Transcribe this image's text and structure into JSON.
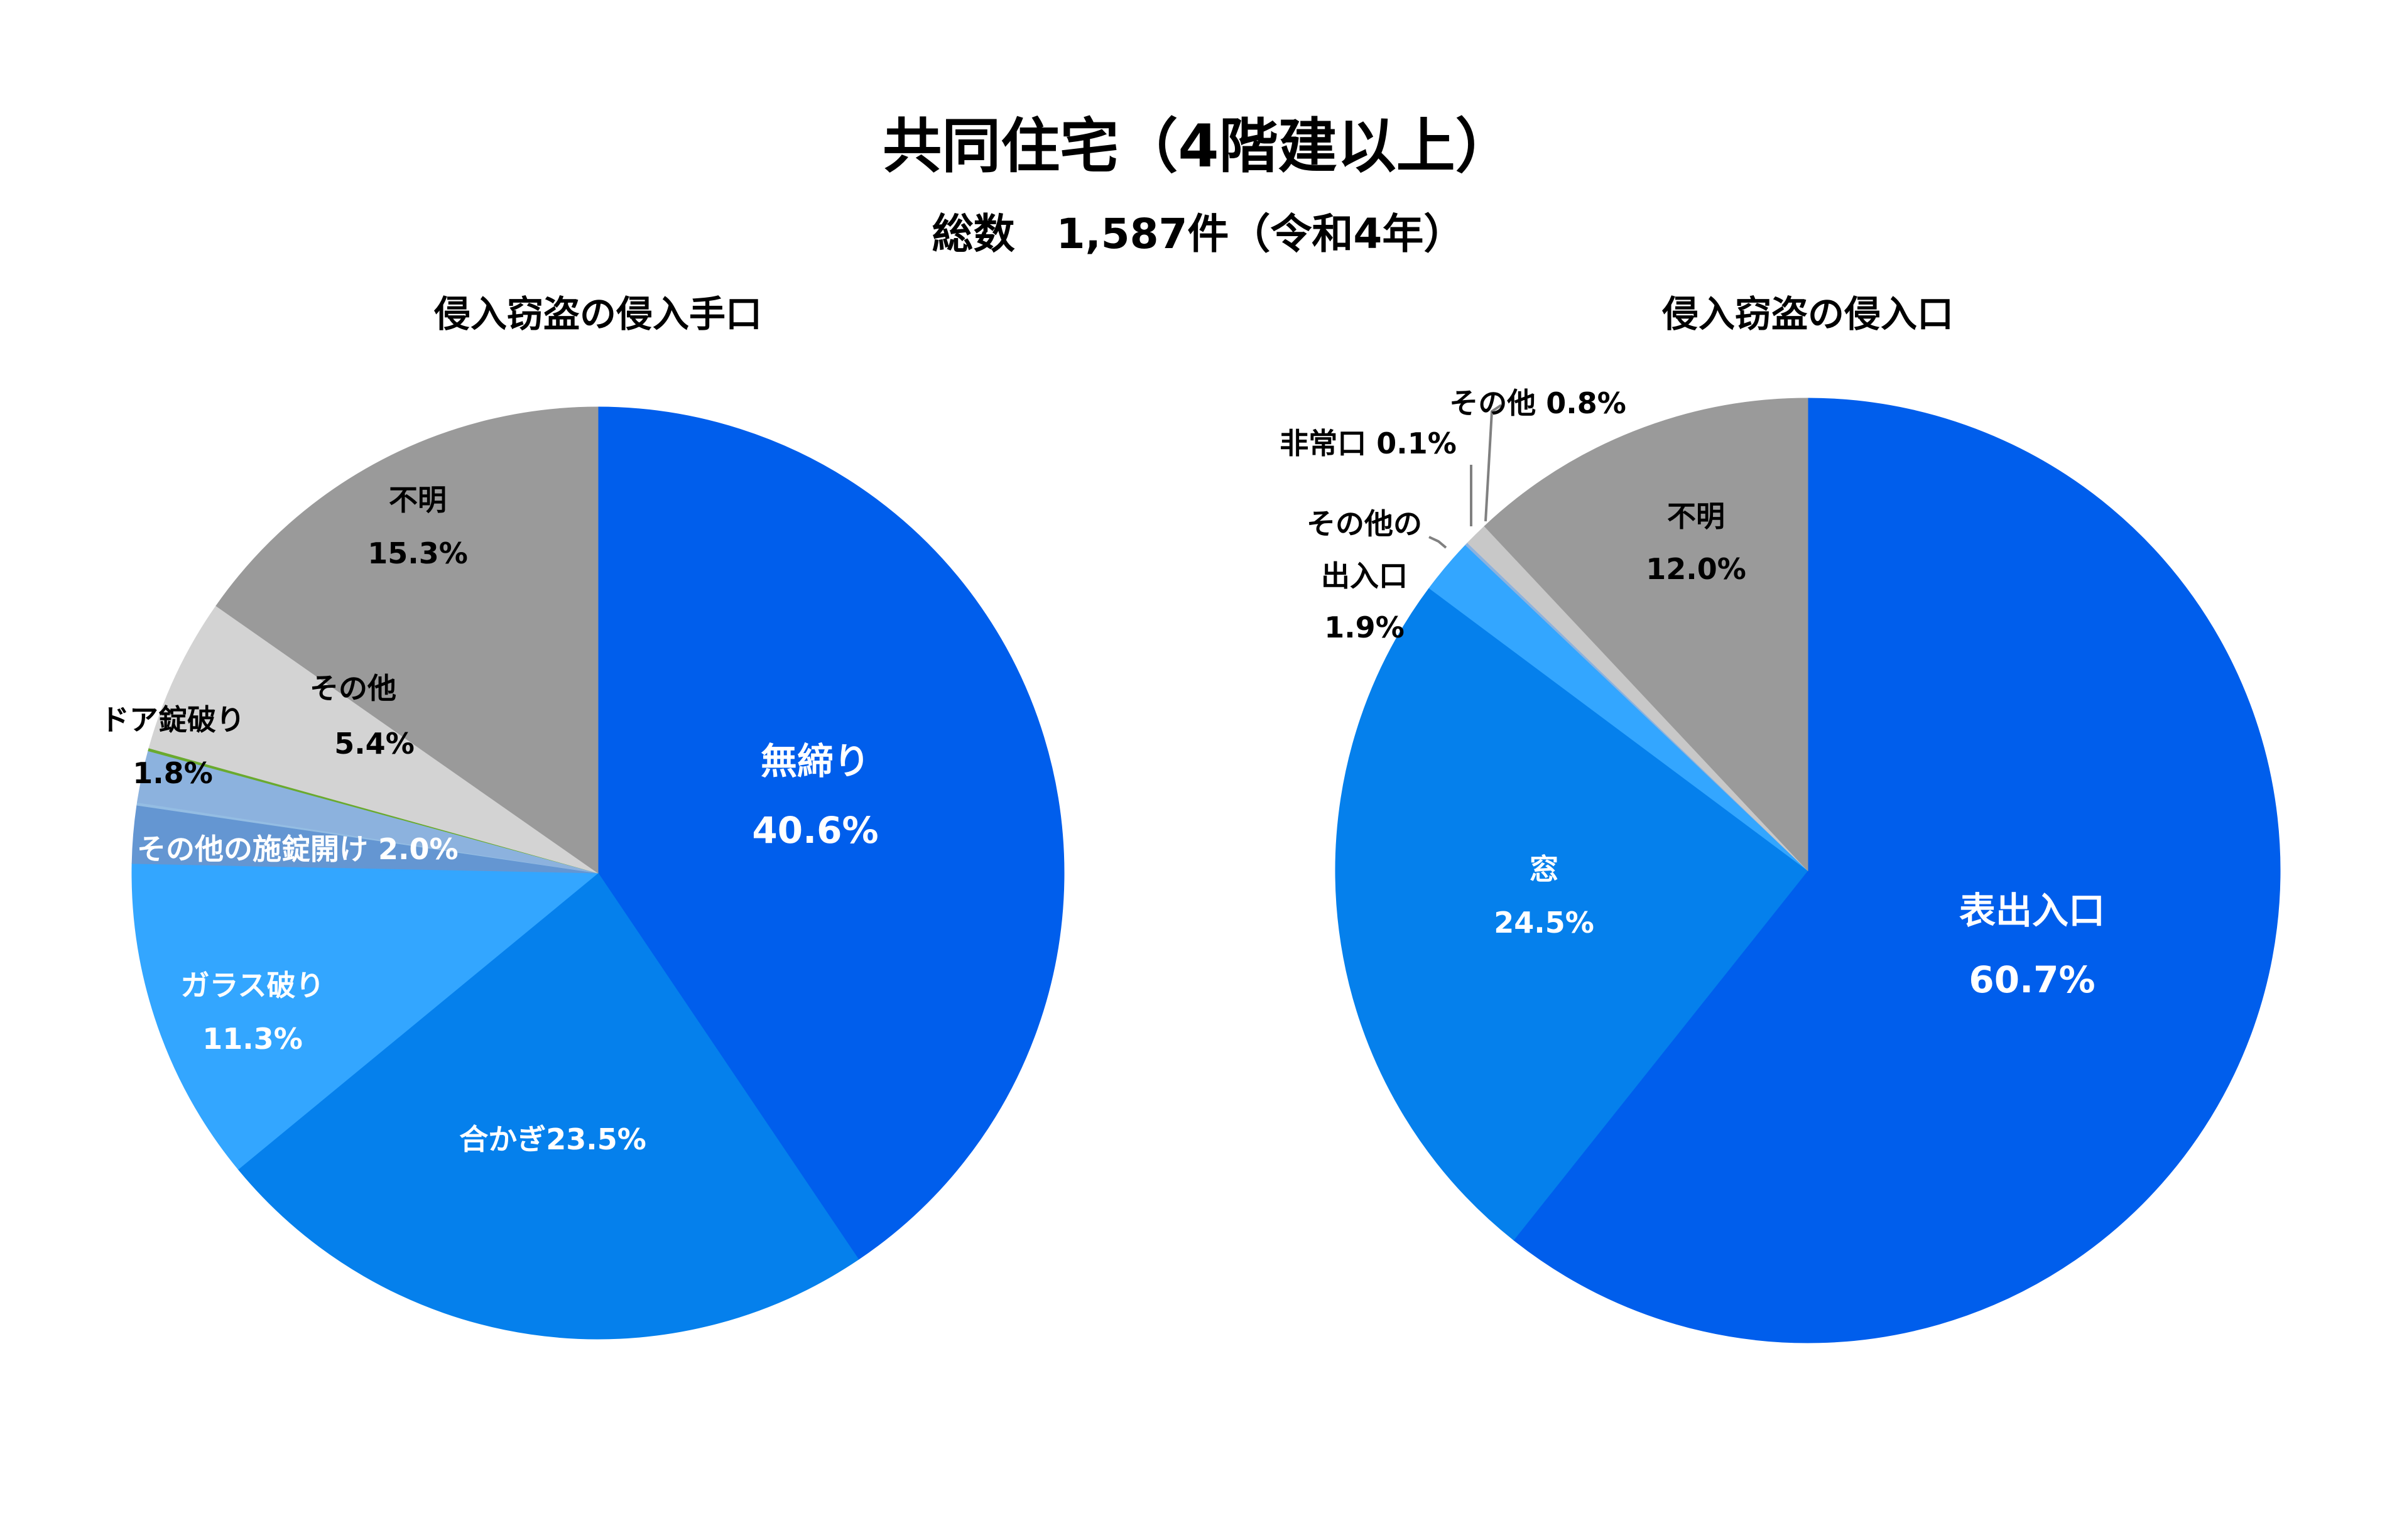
{
  "title": "共同住宅（4階建以上）",
  "subtitle": "総数　1,587件（令和4年）",
  "chart_data": [
    {
      "type": "pie",
      "title": "侵入窃盗の侵入手口",
      "unit": "%",
      "slices": [
        {
          "label": "無締り",
          "value_text": "40.6%",
          "value": 40.6,
          "color": "#005EEC",
          "label_color": "#FFFFFF"
        },
        {
          "label": "合かぎ",
          "value_text": "23.5%",
          "value": 23.5,
          "color": "#0580EC",
          "label_color": "#FFFFFF"
        },
        {
          "label": "ガラス破り",
          "value_text": "11.3%",
          "value": 11.3,
          "color": "#33A6FF",
          "label_color": "#FFFFFF"
        },
        {
          "label": "その他の施錠開け",
          "value_text": "2.0%",
          "value": 2.0,
          "color": "#6496D2",
          "label_color": "#FFFFFF"
        },
        {
          "label": "",
          "value_text": "",
          "value": 0.1,
          "color": "#94BDE3",
          "label_color": "#000000"
        },
        {
          "label": "ドア錠破り",
          "value_text": "1.8%",
          "value": 1.8,
          "color": "#8CB2DE",
          "label_color": "#000000"
        },
        {
          "label": "",
          "value_text": "",
          "value": 0.1,
          "color": "#6AAA2E",
          "label_color": "#000000"
        },
        {
          "label": "その他",
          "value_text": "5.4%",
          "value": 5.4,
          "color": "#D3D3D3",
          "label_color": "#000000"
        },
        {
          "label": "不明",
          "value_text": "15.3%",
          "value": 15.3,
          "color": "#9A9A9A",
          "label_color": "#000000"
        }
      ]
    },
    {
      "type": "pie",
      "title": "侵入窃盗の侵入口",
      "unit": "%",
      "slices": [
        {
          "label": "表出入口",
          "value_text": "60.7%",
          "value": 60.7,
          "color": "#005EEC",
          "label_color": "#FFFFFF"
        },
        {
          "label": "窓",
          "value_text": "24.5%",
          "value": 24.5,
          "color": "#0580EC",
          "label_color": "#FFFFFF"
        },
        {
          "label": "その他の出入口",
          "value_text": "1.9%",
          "value": 1.9,
          "color": "#33A6FF",
          "label_color": "#000000"
        },
        {
          "label": "非常口",
          "value_text": "0.1%",
          "value": 0.1,
          "color": "#8CB2DE",
          "label_color": "#000000"
        },
        {
          "label": "その他",
          "value_text": "0.8%",
          "value": 0.8,
          "color": "#C8C8C8",
          "label_color": "#000000"
        },
        {
          "label": "不明",
          "value_text": "12.0%",
          "value": 12.0,
          "color": "#9A9A9A",
          "label_color": "#000000"
        }
      ]
    }
  ]
}
